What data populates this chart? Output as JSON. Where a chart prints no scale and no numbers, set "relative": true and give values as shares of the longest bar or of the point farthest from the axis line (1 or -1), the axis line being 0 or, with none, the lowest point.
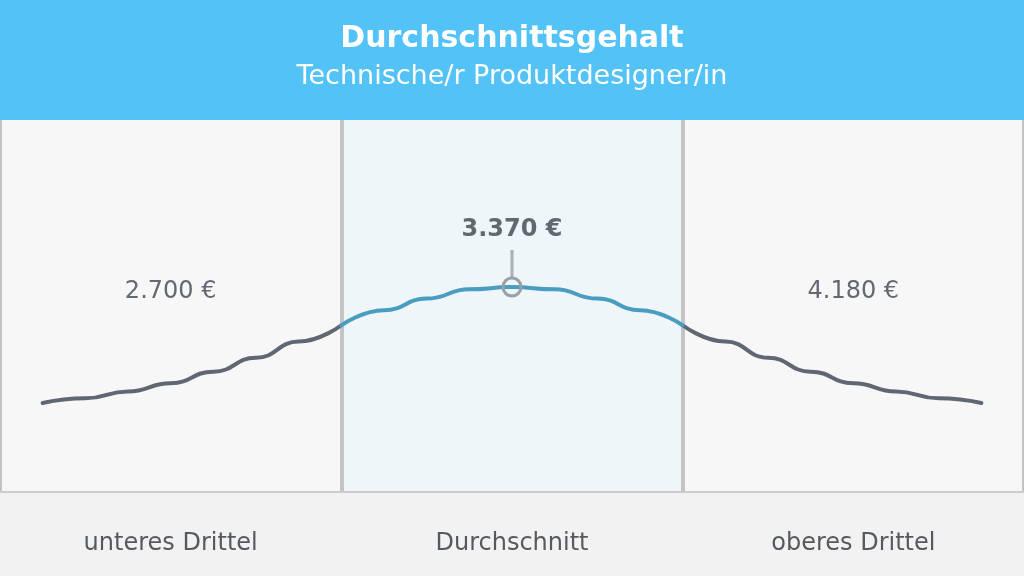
{
  "chart_data": [
    {
      "type": "other",
      "title": "Durchschnittsgehalt",
      "subtitle": "Technische/r Produktdesigner/in",
      "categories": [
        "unteres Drittel",
        "Durchschnitt",
        "oberes Drittel"
      ],
      "values": [
        2700,
        3370,
        4180
      ],
      "value_labels": [
        "2.700 €",
        "3.370 €",
        "4.180 €"
      ]
    },
    {
      "type": "line",
      "relative": true,
      "marker": "none",
      "categories": [
        null,
        null,
        null,
        null,
        null,
        null,
        null,
        null,
        null,
        null,
        null,
        null,
        null,
        null,
        null,
        null,
        null,
        null,
        null,
        null,
        null,
        null,
        null,
        null,
        null
      ],
      "series": [
        {
          "color": "#5f6773",
          "values": [
            null,
            0,
            0.04,
            0.1,
            0.17,
            0.27,
            0.39,
            0.53,
            0.67,
            null,
            null,
            null,
            null,
            null,
            null,
            null,
            0.67,
            0.53,
            0.39,
            0.27,
            0.17,
            0.1,
            0.04,
            0,
            null
          ]
        },
        {
          "color": "#4a9cc0",
          "values": [
            null,
            null,
            null,
            null,
            null,
            null,
            null,
            null,
            0.67,
            0.8,
            0.9,
            0.98,
            1,
            0.98,
            0.9,
            0.8,
            0.67,
            null,
            null,
            null,
            null,
            null,
            null,
            null,
            null
          ]
        }
      ]
    }
  ]
}
